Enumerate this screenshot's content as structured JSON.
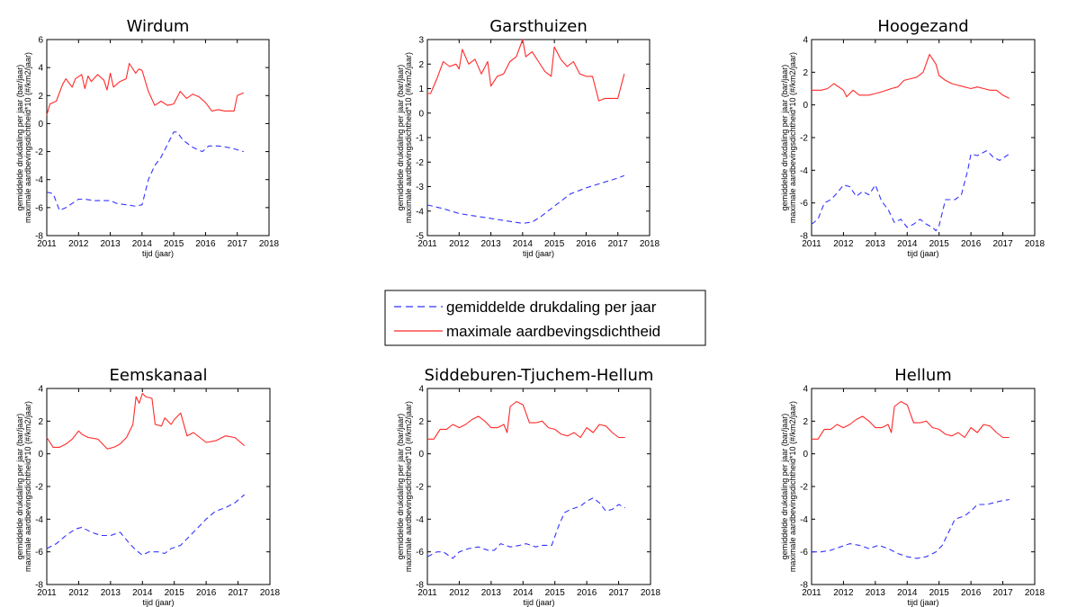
{
  "legend": {
    "items": [
      {
        "label": "gemiddelde drukdaling per jaar",
        "color": "#3333ff",
        "style": "dashed"
      },
      {
        "label": "maximale aardbevingsdichtheid",
        "color": "#ff2a2a",
        "style": "solid"
      }
    ]
  },
  "chart_data": [
    {
      "type": "line",
      "title": "Wirdum",
      "xlabel": "tijd (jaar)",
      "ylabel": "gemiddelde drukdaling per jaar (bar/jaar)",
      "ylabel2": "maximale aardbevingsdichtheid*10 (#/km2/jaar)",
      "xlim": [
        2011,
        2018
      ],
      "ylim": [
        -8,
        6
      ],
      "xticks": [
        2011,
        2012,
        2013,
        2014,
        2015,
        2016,
        2017,
        2018
      ],
      "yticks": [
        -8,
        -6,
        -4,
        -2,
        0,
        2,
        4,
        6
      ],
      "series": [
        {
          "name": "gemiddelde drukdaling per jaar",
          "color": "#3333ff",
          "dash": true,
          "x": [
            2011.0,
            2011.2,
            2011.4,
            2011.6,
            2011.8,
            2012.0,
            2012.2,
            2012.5,
            2012.8,
            2013.0,
            2013.2,
            2013.5,
            2013.8,
            2014.0,
            2014.2,
            2014.4,
            2014.6,
            2014.8,
            2015.0,
            2015.1,
            2015.3,
            2015.6,
            2015.9,
            2016.1,
            2016.4,
            2016.7,
            2016.9,
            2017.2
          ],
          "y": [
            -4.9,
            -5.0,
            -6.2,
            -6.0,
            -5.7,
            -5.4,
            -5.4,
            -5.5,
            -5.5,
            -5.5,
            -5.7,
            -5.8,
            -5.9,
            -5.8,
            -4.0,
            -3.0,
            -2.4,
            -1.5,
            -0.6,
            -0.6,
            -1.2,
            -1.7,
            -2.0,
            -1.6,
            -1.6,
            -1.7,
            -1.8,
            -2.0
          ]
        },
        {
          "name": "maximale aardbevingsdichtheid",
          "color": "#ff2a2a",
          "dash": false,
          "x": [
            2011.0,
            2011.1,
            2011.3,
            2011.5,
            2011.6,
            2011.8,
            2011.9,
            2012.1,
            2012.2,
            2012.3,
            2012.4,
            2012.6,
            2012.8,
            2012.9,
            2013.0,
            2013.1,
            2013.3,
            2013.5,
            2013.6,
            2013.8,
            2013.9,
            2014.0,
            2014.2,
            2014.4,
            2014.6,
            2014.8,
            2015.0,
            2015.2,
            2015.4,
            2015.6,
            2015.8,
            2016.0,
            2016.2,
            2016.4,
            2016.6,
            2016.9,
            2017.0,
            2017.2
          ],
          "y": [
            0.6,
            1.4,
            1.6,
            2.8,
            3.2,
            2.6,
            3.2,
            3.5,
            2.5,
            3.4,
            3.0,
            3.5,
            3.1,
            2.4,
            3.6,
            2.6,
            3.0,
            3.2,
            4.3,
            3.6,
            3.9,
            3.8,
            2.3,
            1.3,
            1.6,
            1.3,
            1.4,
            2.3,
            1.8,
            2.1,
            1.9,
            1.5,
            0.9,
            1.0,
            0.9,
            0.9,
            2.0,
            2.2
          ]
        }
      ]
    },
    {
      "type": "line",
      "title": "Garsthuizen",
      "xlabel": "tijd (jaar)",
      "ylabel": "gemiddelde drukdaling per jaar (bar/jaar)",
      "ylabel2": "maximale aardbevingsdichtheid*10 (#/km2/jaar)",
      "xlim": [
        2011,
        2018
      ],
      "ylim": [
        -5,
        3
      ],
      "xticks": [
        2011,
        2012,
        2013,
        2014,
        2015,
        2016,
        2017,
        2018
      ],
      "yticks": [
        -5,
        -4,
        -3,
        -2,
        -1,
        0,
        1,
        2,
        3
      ],
      "series": [
        {
          "name": "gemiddelde drukdaling per jaar",
          "color": "#3333ff",
          "dash": true,
          "x": [
            2011.0,
            2011.5,
            2012.0,
            2012.5,
            2013.0,
            2013.5,
            2014.0,
            2014.3,
            2014.6,
            2015.0,
            2015.5,
            2016.0,
            2016.5,
            2017.0,
            2017.2
          ],
          "y": [
            -3.75,
            -3.9,
            -4.1,
            -4.2,
            -4.3,
            -4.4,
            -4.5,
            -4.45,
            -4.2,
            -3.8,
            -3.3,
            -3.05,
            -2.85,
            -2.65,
            -2.55
          ]
        },
        {
          "name": "maximale aardbevingsdichtheid",
          "color": "#ff2a2a",
          "dash": false,
          "x": [
            2011.0,
            2011.1,
            2011.3,
            2011.5,
            2011.7,
            2011.9,
            2012.0,
            2012.1,
            2012.3,
            2012.5,
            2012.7,
            2012.9,
            2013.0,
            2013.2,
            2013.4,
            2013.6,
            2013.8,
            2014.0,
            2014.1,
            2014.3,
            2014.5,
            2014.7,
            2014.9,
            2015.0,
            2015.2,
            2015.4,
            2015.6,
            2015.8,
            2016.0,
            2016.2,
            2016.4,
            2016.6,
            2016.8,
            2017.0,
            2017.2
          ],
          "y": [
            0.8,
            0.8,
            1.4,
            2.1,
            1.9,
            2.0,
            1.8,
            2.6,
            2.0,
            2.2,
            1.6,
            2.1,
            1.1,
            1.5,
            1.6,
            2.1,
            2.3,
            3.0,
            2.3,
            2.5,
            2.1,
            1.7,
            1.5,
            2.7,
            2.2,
            1.9,
            2.1,
            1.6,
            1.5,
            1.5,
            0.5,
            0.6,
            0.6,
            0.6,
            1.6
          ]
        }
      ]
    },
    {
      "type": "line",
      "title": "Hoogezand",
      "xlabel": "tijd (jaar)",
      "ylabel": "gemiddelde drukdaling per jaar (bar/jaar)",
      "ylabel2": "maximale aardbevingsdichtheid*10 (#/km2/jaar)",
      "xlim": [
        2011,
        2018
      ],
      "ylim": [
        -8,
        4
      ],
      "xticks": [
        2011,
        2012,
        2013,
        2014,
        2015,
        2016,
        2017,
        2018
      ],
      "yticks": [
        -8,
        -6,
        -4,
        -2,
        0,
        2,
        4
      ],
      "series": [
        {
          "name": "gemiddelde drukdaling per jaar",
          "color": "#3333ff",
          "dash": true,
          "x": [
            2011.0,
            2011.2,
            2011.4,
            2011.6,
            2011.8,
            2012.0,
            2012.2,
            2012.4,
            2012.6,
            2012.8,
            2013.0,
            2013.2,
            2013.4,
            2013.6,
            2013.8,
            2014.0,
            2014.2,
            2014.4,
            2014.6,
            2014.8,
            2014.9,
            2015.0,
            2015.2,
            2015.5,
            2015.7,
            2015.9,
            2016.0,
            2016.2,
            2016.5,
            2016.7,
            2016.9,
            2017.2
          ],
          "y": [
            -7.3,
            -7.0,
            -6.0,
            -5.8,
            -5.4,
            -4.9,
            -5.0,
            -5.6,
            -5.3,
            -5.5,
            -4.9,
            -5.9,
            -6.4,
            -7.2,
            -7.0,
            -7.5,
            -7.3,
            -7.0,
            -7.3,
            -7.5,
            -7.7,
            -7.4,
            -5.8,
            -5.8,
            -5.5,
            -4.0,
            -3.0,
            -3.1,
            -2.8,
            -3.2,
            -3.4,
            -3.0
          ]
        },
        {
          "name": "maximale aardbevingsdichtheid",
          "color": "#ff2a2a",
          "dash": false,
          "x": [
            2011.0,
            2011.3,
            2011.5,
            2011.7,
            2012.0,
            2012.1,
            2012.3,
            2012.5,
            2012.8,
            2013.0,
            2013.2,
            2013.5,
            2013.7,
            2013.9,
            2014.1,
            2014.3,
            2014.5,
            2014.7,
            2014.9,
            2015.0,
            2015.2,
            2015.4,
            2015.6,
            2015.8,
            2016.0,
            2016.2,
            2016.4,
            2016.6,
            2016.8,
            2017.0,
            2017.2
          ],
          "y": [
            0.9,
            0.9,
            1.0,
            1.3,
            0.9,
            0.5,
            0.9,
            0.6,
            0.6,
            0.7,
            0.8,
            1.0,
            1.1,
            1.5,
            1.6,
            1.7,
            2.0,
            3.1,
            2.5,
            1.8,
            1.5,
            1.3,
            1.2,
            1.1,
            1.0,
            1.1,
            1.0,
            0.9,
            0.9,
            0.6,
            0.4
          ]
        }
      ]
    },
    {
      "type": "line",
      "title": "Eemskanaal",
      "xlabel": "tijd (jaar)",
      "ylabel": "gemiddelde drukdaling per jaar (bar/jaar)",
      "ylabel2": "maximale aardbevingsdichtheid*10 (#/km2/jaar)",
      "xlim": [
        2011,
        2018
      ],
      "ylim": [
        -8,
        4
      ],
      "xticks": [
        2011,
        2012,
        2013,
        2014,
        2015,
        2016,
        2017,
        2018
      ],
      "yticks": [
        -8,
        -6,
        -4,
        -2,
        0,
        2,
        4
      ],
      "series": [
        {
          "name": "gemiddelde drukdaling per jaar",
          "color": "#3333ff",
          "dash": true,
          "x": [
            2011.0,
            2011.3,
            2011.6,
            2011.9,
            2012.1,
            2012.4,
            2012.7,
            2013.0,
            2013.3,
            2013.6,
            2013.8,
            2014.0,
            2014.2,
            2014.5,
            2014.7,
            2014.9,
            2015.2,
            2015.5,
            2015.8,
            2016.0,
            2016.3,
            2016.6,
            2016.9,
            2017.2
          ],
          "y": [
            -5.8,
            -5.5,
            -5.0,
            -4.6,
            -4.5,
            -4.8,
            -5.0,
            -5.0,
            -4.8,
            -5.5,
            -5.9,
            -6.2,
            -6.0,
            -6.0,
            -6.1,
            -5.8,
            -5.6,
            -5.0,
            -4.4,
            -4.0,
            -3.5,
            -3.3,
            -3.0,
            -2.5
          ]
        },
        {
          "name": "maximale aardbevingsdichtheid",
          "color": "#ff2a2a",
          "dash": false,
          "x": [
            2011.0,
            2011.2,
            2011.4,
            2011.6,
            2011.8,
            2012.0,
            2012.1,
            2012.3,
            2012.6,
            2012.9,
            2013.1,
            2013.3,
            2013.5,
            2013.7,
            2013.8,
            2013.9,
            2014.0,
            2014.1,
            2014.3,
            2014.4,
            2014.6,
            2014.7,
            2014.9,
            2015.0,
            2015.2,
            2015.4,
            2015.6,
            2015.8,
            2016.0,
            2016.3,
            2016.6,
            2016.9,
            2017.2
          ],
          "y": [
            1.0,
            0.4,
            0.4,
            0.6,
            0.9,
            1.4,
            1.2,
            1.0,
            0.9,
            0.3,
            0.4,
            0.6,
            1.0,
            1.8,
            3.5,
            3.1,
            3.7,
            3.5,
            3.4,
            1.8,
            1.7,
            2.2,
            1.8,
            2.1,
            2.5,
            1.1,
            1.3,
            1.0,
            0.7,
            0.8,
            1.1,
            1.0,
            0.5
          ]
        }
      ]
    },
    {
      "type": "line",
      "title": "Siddeburen-Tjuchem-Hellum",
      "xlabel": "tijd (jaar)",
      "ylabel": "gemiddelde drukdaling per jaar (bar/jaar)",
      "ylabel2": "maximale aardbevingsdichtheid*10 (#/km2/jaar)",
      "xlim": [
        2011,
        2018
      ],
      "ylim": [
        -8,
        4
      ],
      "xticks": [
        2011,
        2012,
        2013,
        2014,
        2015,
        2016,
        2017,
        2018
      ],
      "yticks": [
        -8,
        -6,
        -4,
        -2,
        0,
        2,
        4
      ],
      "series": [
        {
          "name": "gemiddelde drukdaling per jaar",
          "color": "#3333ff",
          "dash": true,
          "x": [
            2011.0,
            2011.3,
            2011.5,
            2011.8,
            2012.0,
            2012.3,
            2012.6,
            2012.9,
            2013.1,
            2013.3,
            2013.6,
            2013.9,
            2014.1,
            2014.4,
            2014.6,
            2014.9,
            2015.1,
            2015.3,
            2015.5,
            2015.8,
            2016.0,
            2016.2,
            2016.4,
            2016.6,
            2016.8,
            2017.0,
            2017.2
          ],
          "y": [
            -6.3,
            -6.0,
            -6.0,
            -6.4,
            -6.0,
            -5.8,
            -5.7,
            -5.9,
            -5.9,
            -5.5,
            -5.7,
            -5.6,
            -5.5,
            -5.7,
            -5.6,
            -5.6,
            -4.5,
            -3.6,
            -3.4,
            -3.2,
            -2.9,
            -2.7,
            -3.0,
            -3.5,
            -3.4,
            -3.1,
            -3.3
          ]
        },
        {
          "name": "maximale aardbevingsdichtheid",
          "color": "#ff2a2a",
          "dash": false,
          "x": [
            2011.0,
            2011.2,
            2011.4,
            2011.6,
            2011.8,
            2012.0,
            2012.2,
            2012.4,
            2012.6,
            2012.8,
            2013.0,
            2013.2,
            2013.4,
            2013.5,
            2013.6,
            2013.8,
            2014.0,
            2014.2,
            2014.4,
            2014.6,
            2014.8,
            2015.0,
            2015.2,
            2015.4,
            2015.6,
            2015.8,
            2016.0,
            2016.2,
            2016.4,
            2016.6,
            2016.8,
            2017.0,
            2017.2
          ],
          "y": [
            0.9,
            0.9,
            1.5,
            1.5,
            1.8,
            1.6,
            1.8,
            2.1,
            2.3,
            2.0,
            1.6,
            1.6,
            1.8,
            1.3,
            2.9,
            3.2,
            3.0,
            1.9,
            1.9,
            2.0,
            1.6,
            1.5,
            1.2,
            1.1,
            1.3,
            1.0,
            1.6,
            1.3,
            1.8,
            1.7,
            1.3,
            1.0,
            1.0
          ]
        }
      ]
    },
    {
      "type": "line",
      "title": "Hellum",
      "xlabel": "tijd (jaar)",
      "ylabel": "gemiddelde drukdaling per jaar (bar/jaar)",
      "ylabel2": "maximale aardbevingsdichtheid*10 (#/km2/jaar)",
      "xlim": [
        2011,
        2018
      ],
      "ylim": [
        -8,
        4
      ],
      "xticks": [
        2011,
        2012,
        2013,
        2014,
        2015,
        2016,
        2017,
        2018
      ],
      "yticks": [
        -8,
        -6,
        -4,
        -2,
        0,
        2,
        4
      ],
      "series": [
        {
          "name": "gemiddelde drukdaling per jaar",
          "color": "#3333ff",
          "dash": true,
          "x": [
            2011.0,
            2011.3,
            2011.6,
            2011.9,
            2012.2,
            2012.5,
            2012.8,
            2013.1,
            2013.4,
            2013.7,
            2014.0,
            2014.3,
            2014.6,
            2014.9,
            2015.1,
            2015.3,
            2015.5,
            2015.8,
            2016.0,
            2016.2,
            2016.5,
            2016.7,
            2016.9,
            2017.2
          ],
          "y": [
            -6.0,
            -6.0,
            -5.9,
            -5.7,
            -5.5,
            -5.6,
            -5.8,
            -5.6,
            -5.8,
            -6.1,
            -6.3,
            -6.4,
            -6.3,
            -6.0,
            -5.6,
            -4.8,
            -4.0,
            -3.8,
            -3.5,
            -3.1,
            -3.1,
            -3.0,
            -2.9,
            -2.8
          ]
        },
        {
          "name": "maximale aardbevingsdichtheid",
          "color": "#ff2a2a",
          "dash": false,
          "x": [
            2011.0,
            2011.2,
            2011.4,
            2011.6,
            2011.8,
            2012.0,
            2012.2,
            2012.4,
            2012.6,
            2012.8,
            2013.0,
            2013.2,
            2013.4,
            2013.5,
            2013.6,
            2013.8,
            2014.0,
            2014.2,
            2014.4,
            2014.6,
            2014.8,
            2015.0,
            2015.2,
            2015.4,
            2015.6,
            2015.8,
            2016.0,
            2016.2,
            2016.4,
            2016.6,
            2016.8,
            2017.0,
            2017.2
          ],
          "y": [
            0.9,
            0.9,
            1.5,
            1.5,
            1.8,
            1.6,
            1.8,
            2.1,
            2.3,
            2.0,
            1.6,
            1.6,
            1.8,
            1.3,
            2.9,
            3.2,
            3.0,
            1.9,
            1.9,
            2.0,
            1.6,
            1.5,
            1.2,
            1.1,
            1.3,
            1.0,
            1.6,
            1.3,
            1.8,
            1.7,
            1.3,
            1.0,
            1.0
          ]
        }
      ]
    }
  ]
}
